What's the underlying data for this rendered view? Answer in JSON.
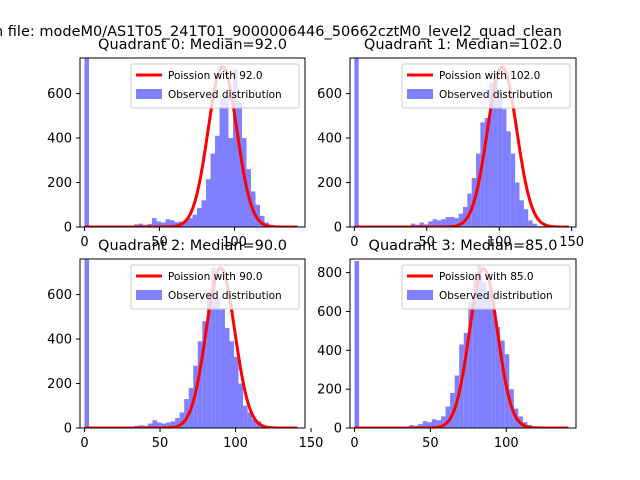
{
  "figure": {
    "suptitle": "n file: modeM0/AS1T05_241T01_9000006446_50662cztM0_level2_quad_clean",
    "colors": {
      "hist": "#7f7fff",
      "fit": "#ff0000",
      "axis": "#000000"
    }
  },
  "chart_data": [
    {
      "type": "bar",
      "title": "Quadrant 0: Median=92.0",
      "xlim": [
        -3,
        147
      ],
      "ylim": [
        0,
        760
      ],
      "xticks": [
        0,
        50,
        100
      ],
      "yticks": [
        0,
        200,
        400,
        600
      ],
      "legend": [
        "Poission with 92.0",
        "Observed distribution"
      ],
      "legend_position": "top-right",
      "poisson_mean": 92.0,
      "peak": 720,
      "hist": {
        "bin_start": 0,
        "bin_width": 3,
        "values": [
          760,
          0,
          0,
          0,
          0,
          0,
          0,
          0,
          0,
          0,
          0,
          12,
          15,
          10,
          14,
          40,
          25,
          20,
          35,
          30,
          22,
          25,
          30,
          40,
          55,
          85,
          120,
          215,
          330,
          410,
          580,
          600,
          400,
          710,
          560,
          400,
          260,
          160,
          100,
          50,
          20,
          10,
          6
        ]
      }
    },
    {
      "type": "bar",
      "title": "Quadrant 1: Median=102.0",
      "xlim": [
        -3,
        153
      ],
      "ylim": [
        0,
        760
      ],
      "xticks": [
        0,
        50,
        100,
        150
      ],
      "yticks": [
        0,
        200,
        400,
        600
      ],
      "legend": [
        "Poission with 102.0",
        "Observed distribution"
      ],
      "legend_position": "top-right",
      "poisson_mean": 102.0,
      "peak": 720,
      "hist": {
        "bin_start": 0,
        "bin_width": 3,
        "values": [
          760,
          0,
          0,
          0,
          0,
          0,
          0,
          0,
          0,
          0,
          0,
          0,
          0,
          15,
          10,
          20,
          12,
          25,
          35,
          30,
          35,
          45,
          45,
          40,
          60,
          90,
          150,
          220,
          330,
          470,
          490,
          650,
          700,
          610,
          530,
          430,
          330,
          200,
          120,
          80,
          30,
          15,
          5,
          4,
          3
        ]
      }
    },
    {
      "type": "bar",
      "title": "Quadrant 2: Median=90.0",
      "xlim": [
        -3,
        146
      ],
      "ylim": [
        0,
        760
      ],
      "xticks": [
        0,
        50,
        100,
        150
      ],
      "yticks": [
        0,
        200,
        400,
        600
      ],
      "legend": [
        "Poission with 90.0",
        "Observed distribution"
      ],
      "legend_position": "top-right",
      "poisson_mean": 90.0,
      "peak": 720,
      "hist": {
        "bin_start": 0,
        "bin_width": 3,
        "values": [
          760,
          0,
          0,
          0,
          0,
          0,
          0,
          0,
          0,
          0,
          0,
          10,
          12,
          10,
          20,
          35,
          25,
          20,
          25,
          30,
          45,
          70,
          130,
          180,
          280,
          390,
          480,
          610,
          720,
          580,
          540,
          450,
          390,
          320,
          200,
          100,
          70,
          40,
          30,
          10,
          5,
          3
        ]
      }
    },
    {
      "type": "bar",
      "title": "Quadrant 3: Median=85.0",
      "xlim": [
        -3,
        146
      ],
      "ylim": [
        0,
        870
      ],
      "xticks": [
        0,
        50,
        100
      ],
      "yticks": [
        0,
        200,
        400,
        600,
        800
      ],
      "legend": [
        "Poission with 85.0",
        "Observed distribution"
      ],
      "legend_position": "top-right",
      "poisson_mean": 85.0,
      "peak": 820,
      "hist": {
        "bin_start": 0,
        "bin_width": 3,
        "values": [
          860,
          0,
          0,
          0,
          0,
          0,
          0,
          0,
          0,
          0,
          0,
          0,
          15,
          12,
          20,
          35,
          30,
          45,
          40,
          60,
          110,
          180,
          270,
          430,
          490,
          650,
          780,
          840,
          750,
          690,
          620,
          520,
          450,
          380,
          200,
          100,
          60,
          30,
          15,
          8,
          3,
          2
        ]
      }
    }
  ]
}
